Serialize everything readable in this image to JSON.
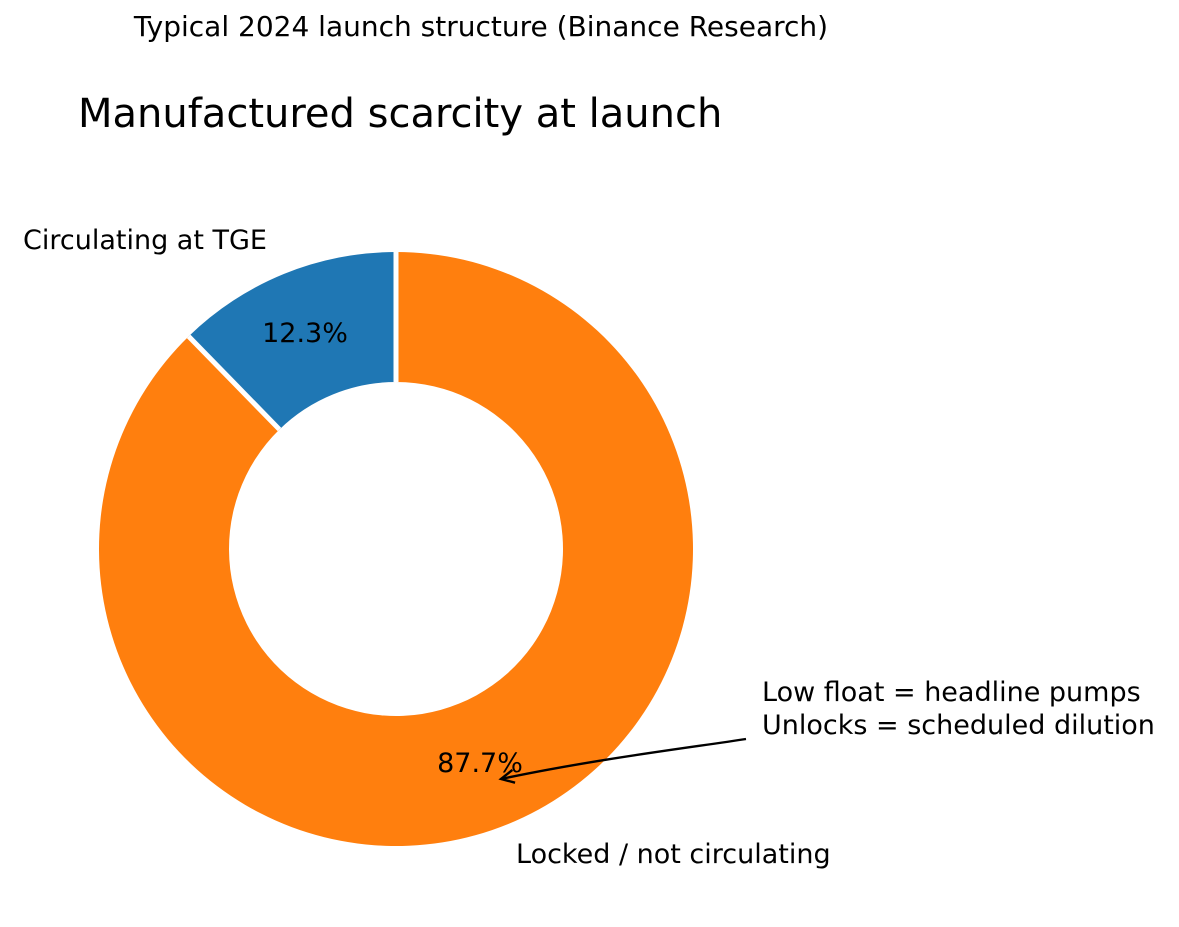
{
  "page": {
    "background": "#ffffff",
    "text_color": "#000000"
  },
  "header": {
    "subtitle": "Typical 2024 launch structure (Binance Research)",
    "title": "Manufactured scarcity at launch"
  },
  "chart_data": {
    "type": "pie",
    "donut": true,
    "start_angle_deg": 90,
    "counterclockwise": true,
    "separator_color": "#ffffff",
    "slices": [
      {
        "label": "Circulating at TGE",
        "value": 12.3,
        "pct_label": "12.3%",
        "color": "#1f77b4"
      },
      {
        "label": "Locked / not circulating",
        "value": 87.7,
        "pct_label": "87.7%",
        "color": "#ff7f0e"
      }
    ],
    "annotation": {
      "line1": "Low float = headline pumps",
      "line2": "Unlocks = scheduled dilution",
      "arrow_color": "#000000"
    }
  }
}
